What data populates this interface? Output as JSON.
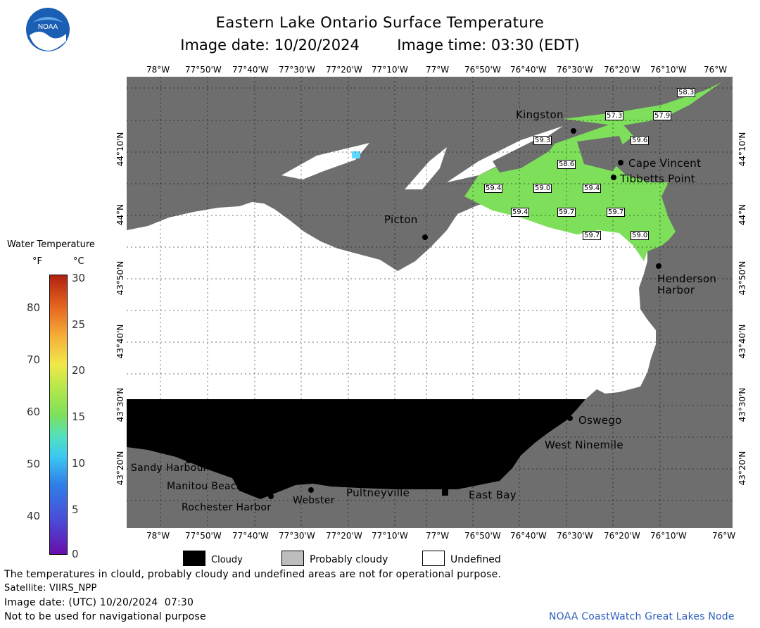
{
  "header": {
    "title": "Eastern Lake Ontario Surface Temperature",
    "image_date_label": "Image date: 10/20/2024",
    "image_time_label": "Image time: 03:30 (EDT)"
  },
  "logo": {
    "text": "NOAA"
  },
  "longitude_ticks": [
    "78°W",
    "77°50'W",
    "77°40'W",
    "77°30'W",
    "77°20'W",
    "77°10'W",
    "77°W",
    "76°50'W",
    "76°40'W",
    "76°30'W",
    "76°20'W",
    "76°10'W",
    "76°W"
  ],
  "latitude_ticks": [
    "44°10'N",
    "44°N",
    "43°50'N",
    "43°40'N",
    "43°30'N",
    "43°20'N"
  ],
  "places": {
    "kingston": "Kingston",
    "cape_vincent": "Cape Vincent",
    "tibbetts_point": "Tibbetts Point",
    "picton": "Picton",
    "henderson": "Henderson",
    "harbor": "Harbor",
    "oswego": "Oswego",
    "west_ninemile": "West Ninemile",
    "sandy_harbour": "Sandy Harbour",
    "manitou_beach": "Manitou Beach",
    "rochester_harbor": "Rochester Harbor",
    "webster": "Webster",
    "pultneyville": "Pultneyville",
    "east_bay": "East Bay"
  },
  "temperature_labels": [
    "58.3",
    "57.3",
    "57.9",
    "59.3",
    "59.6",
    "58.6",
    "59.4",
    "59.0",
    "59.4",
    "59.4",
    "59.7",
    "59.7",
    "59.7",
    "59.0"
  ],
  "colorbar": {
    "title": "Water Temperature",
    "unit_f": "°F",
    "unit_c": "°C",
    "f_ticks": [
      "80",
      "70",
      "60",
      "50",
      "40"
    ],
    "c_ticks": [
      "30",
      "25",
      "20",
      "15",
      "10",
      "5",
      "0"
    ]
  },
  "legend": {
    "cloudy": "Cloudy",
    "probably_cloudy": "Probably cloudy",
    "undefined": "Undefined",
    "colors": {
      "cloudy": "#000000",
      "probably_cloudy": "#bdbdbd",
      "undefined": "#ffffff"
    }
  },
  "footer": {
    "disclaimer": "The temperatures in clould, probably cloudy and undefined areas are not for operational purpose.",
    "satellite": "Satellite: VIIRS_NPP",
    "utc_date": "Image date: (UTC) 10/20/2024  07:30",
    "navigation": "Not to be used for navigational purpose",
    "credit": "NOAA CoastWatch Great Lakes Node"
  },
  "colors": {
    "land": "#6e6e6e",
    "water_warm": "#7ee05a",
    "cloud": "#000000",
    "credit": "#2f5fbf"
  }
}
